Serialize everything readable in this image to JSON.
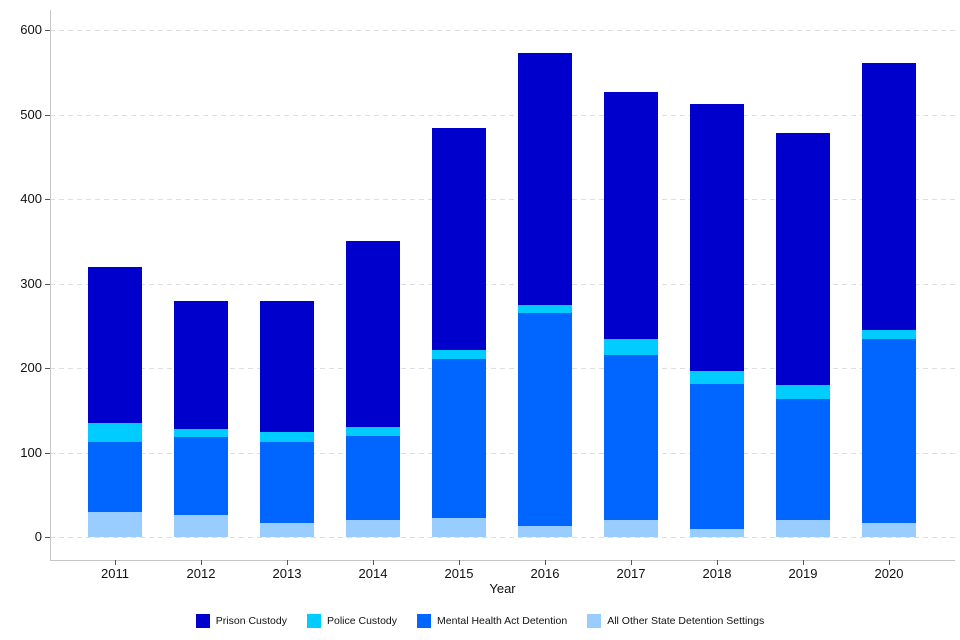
{
  "chart_data": {
    "type": "bar",
    "stacked": true,
    "title": "",
    "xlabel": "Year",
    "ylabel": "",
    "ylim": [
      0,
      600
    ],
    "yticks": [
      0,
      100,
      200,
      300,
      400,
      500,
      600
    ],
    "grid": "horizontal-dashed",
    "legend_position": "bottom-center",
    "categories": [
      "2011",
      "2012",
      "2013",
      "2014",
      "2015",
      "2016",
      "2017",
      "2018",
      "2019",
      "2020"
    ],
    "series": [
      {
        "name": "All Other State Detention Settings",
        "color": "#99CCFF",
        "values": [
          30,
          26,
          16,
          20,
          23,
          13,
          20,
          10,
          20,
          16
        ]
      },
      {
        "name": "Mental Health Act Detention",
        "color": "#0066FF",
        "values": [
          83,
          92,
          97,
          100,
          188,
          252,
          195,
          171,
          144,
          218
        ]
      },
      {
        "name": "Police Custody",
        "color": "#00CCFF",
        "values": [
          22,
          10,
          11,
          10,
          11,
          10,
          20,
          16,
          16,
          11
        ]
      },
      {
        "name": "Prison Custody",
        "color": "#0000CC",
        "values": [
          185,
          152,
          156,
          221,
          262,
          298,
          292,
          316,
          298,
          317
        ]
      }
    ],
    "totals": [
      320,
      280,
      280,
      351,
      484,
      573,
      527,
      513,
      478,
      562
    ],
    "legend_order": [
      "Prison Custody",
      "Police Custody",
      "Mental Health Act Detention",
      "All Other State Detention Settings"
    ]
  }
}
